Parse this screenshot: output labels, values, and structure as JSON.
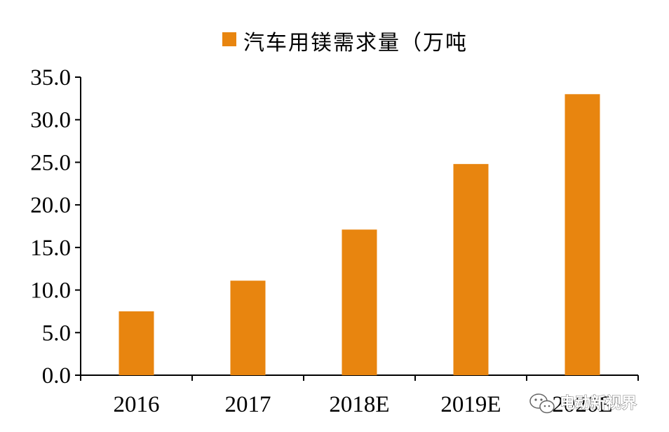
{
  "chart_data": {
    "type": "bar",
    "title": "",
    "xlabel": "",
    "ylabel": "",
    "categories": [
      "2016",
      "2017",
      "2018E",
      "2019E",
      "2020E"
    ],
    "series": [
      {
        "name": "汽车用镁需求量（万吨",
        "values": [
          7.5,
          11.1,
          17.1,
          24.8,
          33.0
        ]
      }
    ],
    "ylim": [
      0,
      35
    ],
    "yticks": [
      "0.0",
      "5.0",
      "10.0",
      "15.0",
      "20.0",
      "25.0",
      "30.0",
      "35.0"
    ],
    "ytick_values": [
      0,
      5,
      10,
      15,
      20,
      25,
      30,
      35
    ],
    "bar_color": "#E8850F",
    "axis_color": "#000000",
    "grid": false,
    "legend_position": "top-center"
  },
  "watermark": {
    "text": "电动新视界",
    "icon": "wechat-icon"
  }
}
